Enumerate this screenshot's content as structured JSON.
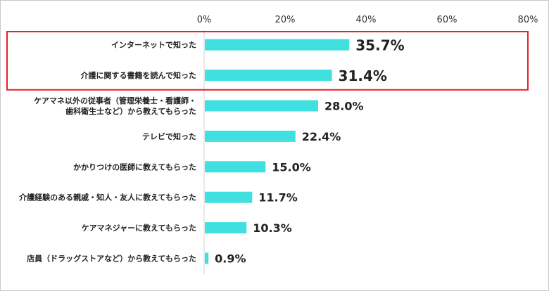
{
  "chart_data": {
    "type": "bar",
    "orientation": "horizontal",
    "categories": [
      [
        "インターネットで知った"
      ],
      [
        "介護に関する書籍を読んで知った"
      ],
      [
        "ケアマネ以外の従事者（管理栄養士・看護師・",
        "歯科衛生士など）から教えてもらった"
      ],
      [
        "テレビで知った"
      ],
      [
        "かかりつけの医師に教えてもらった"
      ],
      [
        "介護経験のある親戚・知人・友人に教えてもらった"
      ],
      [
        "ケアマネジャーに教えてもらった"
      ],
      [
        "店員（ドラッグストアなど）から教えてもらった"
      ]
    ],
    "values": [
      35.7,
      31.4,
      28.0,
      22.4,
      15.0,
      11.7,
      10.3,
      0.9
    ],
    "value_labels": [
      "35.7%",
      "31.4%",
      "28.0%",
      "22.4%",
      "15.0%",
      "11.7%",
      "10.3%",
      "0.9%"
    ],
    "x_ticks": [
      "0%",
      "20%",
      "40%",
      "60%",
      "80%"
    ],
    "xlim": [
      0,
      80
    ],
    "grid": false,
    "bar_color": "#40e0e0",
    "highlight": {
      "categories": [
        0,
        1
      ],
      "color": "#e8202a"
    }
  }
}
